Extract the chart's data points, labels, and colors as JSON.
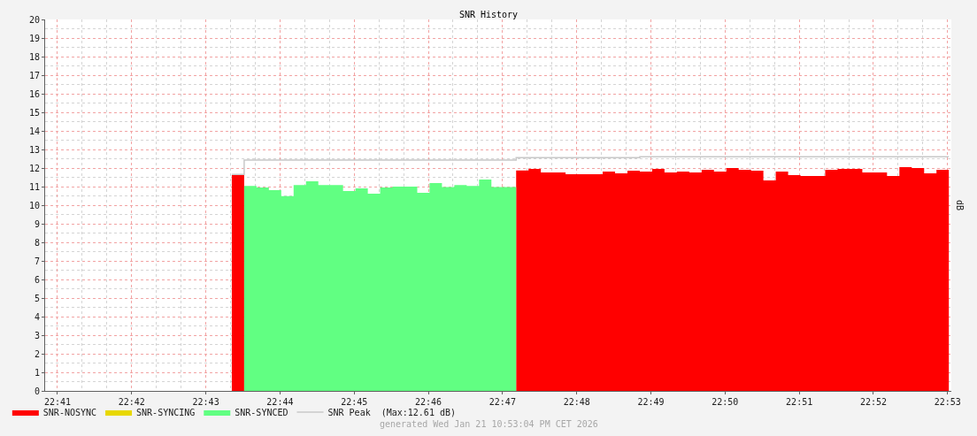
{
  "chart_data": {
    "type": "area",
    "title": "SNR History",
    "ylabel": "dB",
    "annotations": [
      "generated Wed Jan 21 10:53:04 PM CET 2026"
    ],
    "x": [
      22.7225,
      22.72528,
      22.72806,
      22.73083,
      22.73361,
      22.73639,
      22.73917,
      22.74194,
      22.74472,
      22.7475,
      22.75028,
      22.75306,
      22.75583,
      22.75861,
      22.76139,
      22.76417,
      22.76694,
      22.76972,
      22.7725,
      22.77528,
      22.77806,
      22.78083,
      22.78361,
      22.78639,
      22.78917,
      22.79194,
      22.79472,
      22.7975,
      22.80028,
      22.80306,
      22.80583,
      22.80861,
      22.81139,
      22.81417,
      22.81694,
      22.81972,
      22.8225,
      22.82528,
      22.82806,
      22.83083,
      22.83361,
      22.83639,
      22.83917,
      22.84194,
      22.84472,
      22.8475,
      22.85028,
      22.85306,
      22.85583,
      22.85861,
      22.86139,
      22.86417,
      22.86694,
      22.86972,
      22.8725,
      22.87528,
      22.87806,
      22.88083,
      22.88361
    ],
    "series": [
      {
        "name": "SNR-NOSYNC",
        "color": "#ff0000",
        "values": [
          11.62,
          11.62,
          null,
          null,
          null,
          null,
          null,
          null,
          null,
          null,
          null,
          null,
          null,
          null,
          null,
          null,
          null,
          null,
          null,
          null,
          null,
          null,
          null,
          11.87,
          11.95,
          11.76,
          11.76,
          11.67,
          11.67,
          11.67,
          11.81,
          11.71,
          11.86,
          11.81,
          11.95,
          11.76,
          11.81,
          11.76,
          11.9,
          11.81,
          12.0,
          11.9,
          11.86,
          11.33,
          11.81,
          11.62,
          11.57,
          11.57,
          11.9,
          11.95,
          11.95,
          11.76,
          11.76,
          11.57,
          12.05,
          12.0,
          11.71,
          11.9,
          11.9
        ]
      },
      {
        "name": "SNR-SYNCING",
        "color": "#e8d800",
        "values": [
          null,
          null,
          null,
          null,
          null,
          null,
          null,
          null,
          null,
          null,
          null,
          null,
          null,
          null,
          null,
          null,
          null,
          null,
          null,
          null,
          null,
          null,
          null,
          null,
          null,
          null,
          null,
          null,
          null,
          null,
          null,
          null,
          null,
          null,
          null,
          null,
          null,
          null,
          null,
          null,
          null,
          null,
          null,
          null,
          null,
          null,
          null,
          null,
          null,
          null,
          null,
          null,
          null,
          null,
          null,
          null,
          null,
          null,
          null
        ]
      },
      {
        "name": "SNR-SYNCED",
        "color": "#61ff82",
        "values": [
          null,
          11.03,
          10.95,
          10.81,
          10.49,
          11.08,
          11.29,
          11.08,
          11.08,
          10.76,
          10.9,
          10.62,
          10.95,
          11.0,
          11.0,
          10.67,
          11.19,
          10.98,
          11.08,
          11.03,
          11.38,
          10.98,
          10.98,
          10.98,
          null,
          null,
          null,
          null,
          null,
          null,
          null,
          null,
          null,
          null,
          null,
          null,
          null,
          null,
          null,
          null,
          null,
          null,
          null,
          null,
          null,
          null,
          null,
          null,
          null,
          null,
          null,
          null,
          null,
          null,
          null,
          null,
          null,
          null,
          null
        ]
      },
      {
        "name": "SNR Peak  (Max:12.61 dB)",
        "type": "step",
        "color": "#c8c8c8",
        "values": [
          11.65,
          12.43,
          12.43,
          12.43,
          12.43,
          12.43,
          12.43,
          12.43,
          12.43,
          12.43,
          12.43,
          12.43,
          12.43,
          12.43,
          12.43,
          12.43,
          12.43,
          12.43,
          12.43,
          12.43,
          12.43,
          12.43,
          12.43,
          12.56,
          12.56,
          12.56,
          12.56,
          12.56,
          12.56,
          12.56,
          12.56,
          12.56,
          12.56,
          12.61,
          12.61,
          12.61,
          12.61,
          12.61,
          12.61,
          12.61,
          12.61,
          12.61,
          12.61,
          12.61,
          12.61,
          12.61,
          12.61,
          12.61,
          12.61,
          12.61,
          12.61,
          12.61,
          12.61,
          12.61,
          12.61,
          12.61,
          12.61,
          12.61,
          12.61
        ]
      }
    ],
    "xlim": [
      22.68056,
      22.88417
    ],
    "xticks": [
      {
        "value": 22.68333,
        "label": "22:41"
      },
      {
        "value": 22.7,
        "label": "22:42"
      },
      {
        "value": 22.71667,
        "label": "22:43"
      },
      {
        "value": 22.73333,
        "label": "22:44"
      },
      {
        "value": 22.75,
        "label": "22:45"
      },
      {
        "value": 22.76667,
        "label": "22:46"
      },
      {
        "value": 22.78333,
        "label": "22:47"
      },
      {
        "value": 22.8,
        "label": "22:48"
      },
      {
        "value": 22.81667,
        "label": "22:49"
      },
      {
        "value": 22.83333,
        "label": "22:50"
      },
      {
        "value": 22.85,
        "label": "22:51"
      },
      {
        "value": 22.86667,
        "label": "22:52"
      },
      {
        "value": 22.88333,
        "label": "22:53"
      },
      {
        "value": 22.68889,
        "label": null
      },
      {
        "value": 22.69444,
        "label": null
      },
      {
        "value": 22.70556,
        "label": null
      },
      {
        "value": 22.71111,
        "label": null
      },
      {
        "value": 22.72222,
        "label": null
      },
      {
        "value": 22.72778,
        "label": null
      },
      {
        "value": 22.73889,
        "label": null
      },
      {
        "value": 22.74444,
        "label": null
      },
      {
        "value": 22.75556,
        "label": null
      },
      {
        "value": 22.76111,
        "label": null
      },
      {
        "value": 22.77222,
        "label": null
      },
      {
        "value": 22.77778,
        "label": null
      },
      {
        "value": 22.78889,
        "label": null
      },
      {
        "value": 22.79444,
        "label": null
      },
      {
        "value": 22.80556,
        "label": null
      },
      {
        "value": 22.81111,
        "label": null
      },
      {
        "value": 22.82222,
        "label": null
      },
      {
        "value": 22.82778,
        "label": null
      },
      {
        "value": 22.83889,
        "label": null
      },
      {
        "value": 22.84444,
        "label": null
      },
      {
        "value": 22.85556,
        "label": null
      },
      {
        "value": 22.86111,
        "label": null
      },
      {
        "value": 22.87222,
        "label": null
      },
      {
        "value": 22.87778,
        "label": null
      }
    ],
    "ylim": [
      0,
      20
    ],
    "yticks": [
      0,
      1,
      2,
      3,
      4,
      5,
      6,
      7,
      8,
      9,
      10,
      11,
      12,
      13,
      14,
      15,
      16,
      17,
      18,
      19,
      20,
      {
        "value": 0.5,
        "label": null
      },
      {
        "value": 1.5,
        "label": null
      },
      {
        "value": 2.5,
        "label": null
      },
      {
        "value": 3.5,
        "label": null
      },
      {
        "value": 4.5,
        "label": null
      },
      {
        "value": 5.5,
        "label": null
      },
      {
        "value": 6.5,
        "label": null
      },
      {
        "value": 7.5,
        "label": null
      },
      {
        "value": 8.5,
        "label": null
      },
      {
        "value": 9.5,
        "label": null
      },
      {
        "value": 10.5,
        "label": null
      },
      {
        "value": 11.5,
        "label": null
      },
      {
        "value": 12.5,
        "label": null
      },
      {
        "value": 13.5,
        "label": null
      },
      {
        "value": 14.5,
        "label": null
      },
      {
        "value": 15.5,
        "label": null
      },
      {
        "value": 16.5,
        "label": null
      },
      {
        "value": 17.5,
        "label": null
      },
      {
        "value": 18.5,
        "label": null
      },
      {
        "value": 19.5,
        "label": null
      }
    ],
    "grid": true,
    "legend": "bottom"
  }
}
